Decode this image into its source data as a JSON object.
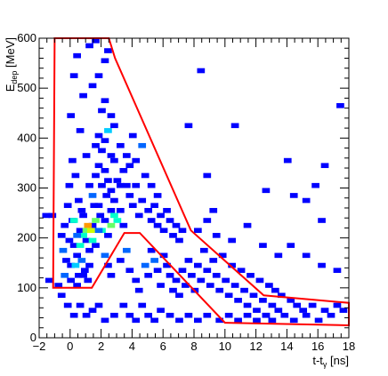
{
  "chart_data": {
    "type": "heatmap",
    "title": "",
    "xlabel": {
      "main": "t-t",
      "sub": "γ",
      "unit": " [ns]"
    },
    "ylabel": {
      "main": "E",
      "sub": "dep",
      "unit": " [MeV]"
    },
    "xlim": [
      -2,
      18
    ],
    "ylim": [
      0,
      600
    ],
    "xticks": [
      -2,
      0,
      2,
      4,
      6,
      8,
      10,
      12,
      14,
      16,
      18
    ],
    "yticks": [
      0,
      100,
      200,
      300,
      400,
      500,
      600
    ],
    "bin_width_x": 0.5,
    "bin_width_y": 10,
    "grid": false,
    "colormap": [
      "#0000ff",
      "#0066ff",
      "#00ccff",
      "#00ffcc",
      "#66ff66",
      "#ccff00",
      "#ff9900",
      "#ff0000"
    ],
    "cut_polygon": {
      "color": "#ff0000",
      "points": [
        [
          -1.0,
          600
        ],
        [
          -1.1,
          100
        ],
        [
          1.4,
          100
        ],
        [
          3.5,
          210
        ],
        [
          4.5,
          210
        ],
        [
          10.0,
          30
        ],
        [
          18.0,
          25
        ],
        [
          18.0,
          70
        ],
        [
          12.5,
          85
        ],
        [
          7.8,
          215
        ],
        [
          2.9,
          560
        ],
        [
          2.5,
          600
        ]
      ]
    },
    "bins": [
      [
        -0.8,
        200,
        1
      ],
      [
        -0.6,
        220,
        1
      ],
      [
        -0.5,
        150,
        1
      ],
      [
        -0.3,
        190,
        1
      ],
      [
        -0.2,
        140,
        1
      ],
      [
        -0.4,
        260,
        1
      ],
      [
        -0.7,
        170,
        2
      ],
      [
        -0.1,
        230,
        1
      ],
      [
        0.0,
        180,
        1
      ],
      [
        0.2,
        160,
        1
      ],
      [
        0.4,
        210,
        1
      ],
      [
        0.6,
        240,
        1
      ],
      [
        0.8,
        190,
        1
      ],
      [
        1.0,
        170,
        1
      ],
      [
        0.1,
        140,
        3
      ],
      [
        0.3,
        120,
        1
      ],
      [
        0.5,
        150,
        2
      ],
      [
        0.7,
        130,
        1
      ],
      [
        0.9,
        110,
        1
      ],
      [
        1.2,
        220,
        1
      ],
      [
        1.4,
        180,
        1
      ],
      [
        1.6,
        260,
        1
      ],
      [
        1.8,
        210,
        4
      ],
      [
        2.0,
        230,
        1
      ],
      [
        2.2,
        200,
        1
      ],
      [
        2.4,
        250,
        1
      ],
      [
        2.6,
        270,
        1
      ],
      [
        2.8,
        230,
        4
      ],
      [
        3.0,
        250,
        1
      ],
      [
        3.2,
        220,
        1
      ],
      [
        1.0,
        300,
        1
      ],
      [
        1.2,
        280,
        2
      ],
      [
        1.4,
        320,
        1
      ],
      [
        1.6,
        340,
        1
      ],
      [
        1.8,
        300,
        1
      ],
      [
        2.0,
        330,
        1
      ],
      [
        2.2,
        310,
        1
      ],
      [
        2.4,
        290,
        1
      ],
      [
        2.6,
        350,
        1
      ],
      [
        2.8,
        310,
        1
      ],
      [
        3.0,
        300,
        1
      ],
      [
        3.2,
        330,
        1
      ],
      [
        1.4,
        380,
        1
      ],
      [
        1.6,
        400,
        1
      ],
      [
        1.8,
        370,
        1
      ],
      [
        2.0,
        390,
        1
      ],
      [
        2.2,
        410,
        3
      ],
      [
        2.4,
        360,
        1
      ],
      [
        2.6,
        420,
        1
      ],
      [
        3.0,
        380,
        1
      ],
      [
        3.4,
        360,
        1
      ],
      [
        1.8,
        450,
        1
      ],
      [
        2.0,
        470,
        1
      ],
      [
        2.4,
        440,
        1
      ],
      [
        1.2,
        500,
        1
      ],
      [
        1.6,
        520,
        1
      ],
      [
        2.0,
        550,
        1
      ],
      [
        1.0,
        580,
        1
      ],
      [
        1.4,
        590,
        1
      ],
      [
        2.2,
        570,
        1
      ],
      [
        0.8,
        210,
        5
      ],
      [
        0.9,
        220,
        7
      ],
      [
        1.1,
        210,
        6
      ],
      [
        0.6,
        200,
        4
      ],
      [
        1.2,
        190,
        4
      ],
      [
        1.4,
        230,
        5
      ],
      [
        0.4,
        180,
        4
      ],
      [
        0.2,
        200,
        2
      ],
      [
        1.6,
        210,
        2
      ],
      [
        2.4,
        220,
        5
      ],
      [
        2.6,
        240,
        4
      ],
      [
        0.0,
        230,
        4
      ],
      [
        3.4,
        300,
        1
      ],
      [
        3.6,
        280,
        1
      ],
      [
        3.8,
        260,
        1
      ],
      [
        4.0,
        300,
        1
      ],
      [
        4.2,
        240,
        1
      ],
      [
        4.4,
        270,
        1
      ],
      [
        4.6,
        320,
        1
      ],
      [
        4.8,
        250,
        1
      ],
      [
        5.0,
        230,
        1
      ],
      [
        5.2,
        260,
        1
      ],
      [
        5.4,
        220,
        1
      ],
      [
        5.6,
        240,
        1
      ],
      [
        5.8,
        210,
        1
      ],
      [
        6.0,
        250,
        1
      ],
      [
        6.2,
        230,
        1
      ],
      [
        6.4,
        200,
        1
      ],
      [
        6.6,
        220,
        1
      ],
      [
        6.8,
        190,
        1
      ],
      [
        7.0,
        210,
        1
      ],
      [
        5.0,
        300,
        1
      ],
      [
        5.4,
        280,
        1
      ],
      [
        3.6,
        340,
        1
      ],
      [
        4.0,
        350,
        1
      ],
      [
        4.4,
        380,
        2
      ],
      [
        3.8,
        400,
        1
      ],
      [
        2.0,
        160,
        2
      ],
      [
        2.2,
        140,
        1
      ],
      [
        2.4,
        120,
        1
      ],
      [
        3.0,
        150,
        1
      ],
      [
        3.4,
        170,
        2
      ],
      [
        3.6,
        130,
        1
      ],
      [
        4.0,
        110,
        1
      ],
      [
        4.2,
        90,
        1
      ],
      [
        4.6,
        140,
        2
      ],
      [
        4.8,
        120,
        1
      ],
      [
        5.0,
        170,
        1
      ],
      [
        5.2,
        150,
        2
      ],
      [
        5.4,
        130,
        1
      ],
      [
        5.6,
        100,
        1
      ],
      [
        5.8,
        160,
        1
      ],
      [
        6.0,
        140,
        1
      ],
      [
        6.2,
        120,
        1
      ],
      [
        6.4,
        90,
        1
      ],
      [
        6.6,
        110,
        1
      ],
      [
        6.8,
        80,
        1
      ],
      [
        7.0,
        130,
        1
      ],
      [
        7.2,
        100,
        1
      ],
      [
        7.4,
        150,
        1
      ],
      [
        7.6,
        120,
        1
      ],
      [
        7.8,
        90,
        1
      ],
      [
        8.0,
        140,
        1
      ],
      [
        8.2,
        110,
        1
      ],
      [
        8.4,
        170,
        1
      ],
      [
        8.6,
        130,
        1
      ],
      [
        8.8,
        100,
        1
      ],
      [
        9.0,
        150,
        1
      ],
      [
        9.2,
        120,
        1
      ],
      [
        9.4,
        90,
        1
      ],
      [
        9.6,
        160,
        1
      ],
      [
        9.8,
        110,
        1
      ],
      [
        10.0,
        80,
        1
      ],
      [
        10.2,
        140,
        1
      ],
      [
        10.4,
        100,
        1
      ],
      [
        10.6,
        70,
        1
      ],
      [
        10.8,
        130,
        1
      ],
      [
        11.0,
        90,
        1
      ],
      [
        11.2,
        60,
        1
      ],
      [
        11.4,
        120,
        1
      ],
      [
        11.6,
        80,
        1
      ],
      [
        11.8,
        50,
        1
      ],
      [
        12.0,
        110,
        1
      ],
      [
        12.2,
        70,
        1
      ],
      [
        12.4,
        40,
        1
      ],
      [
        12.6,
        100,
        1
      ],
      [
        12.8,
        60,
        1
      ],
      [
        13.0,
        90,
        1
      ],
      [
        13.2,
        50,
        1
      ],
      [
        13.4,
        80,
        1
      ],
      [
        13.6,
        40,
        1
      ],
      [
        14.0,
        70,
        1
      ],
      [
        14.2,
        30,
        1
      ],
      [
        14.4,
        60,
        1
      ],
      [
        14.8,
        50,
        1
      ],
      [
        15.0,
        40,
        1
      ],
      [
        15.4,
        60,
        1
      ],
      [
        15.8,
        30,
        1
      ],
      [
        16.2,
        50,
        1
      ],
      [
        16.6,
        40,
        1
      ],
      [
        17.0,
        60,
        1
      ],
      [
        17.4,
        50,
        1
      ],
      [
        17.8,
        70,
        1
      ],
      [
        8.0,
        210,
        1
      ],
      [
        8.6,
        230,
        1
      ],
      [
        9.2,
        200,
        1
      ],
      [
        10.2,
        190,
        1
      ],
      [
        11.2,
        220,
        1
      ],
      [
        12.2,
        180,
        1
      ],
      [
        13.2,
        160,
        1
      ],
      [
        14.0,
        180,
        1
      ],
      [
        15.0,
        160,
        1
      ],
      [
        16.0,
        140,
        1
      ],
      [
        17.0,
        130,
        1
      ],
      [
        13.8,
        350,
        1
      ],
      [
        16.2,
        340,
        1
      ],
      [
        17.2,
        460,
        1
      ],
      [
        8.2,
        530,
        1
      ],
      [
        10.4,
        420,
        1
      ],
      [
        7.4,
        420,
        1
      ],
      [
        8.6,
        320,
        1
      ],
      [
        9.0,
        250,
        1
      ],
      [
        12.4,
        290,
        1
      ],
      [
        14.2,
        280,
        1
      ],
      [
        15.0,
        270,
        1
      ],
      [
        16.0,
        230,
        1
      ],
      [
        15.6,
        300,
        1
      ],
      [
        17.8,
        270,
        1
      ],
      [
        -0.8,
        80,
        1
      ],
      [
        -0.4,
        60,
        1
      ],
      [
        0.0,
        40,
        1
      ],
      [
        0.4,
        60,
        1
      ],
      [
        0.8,
        40,
        1
      ],
      [
        1.2,
        50,
        1
      ],
      [
        1.6,
        60,
        1
      ],
      [
        2.0,
        30,
        1
      ],
      [
        2.6,
        40,
        1
      ],
      [
        3.2,
        60,
        1
      ],
      [
        3.6,
        40,
        1
      ],
      [
        4.0,
        30,
        1
      ],
      [
        4.4,
        60,
        1
      ],
      [
        4.8,
        40,
        1
      ],
      [
        5.2,
        30,
        1
      ],
      [
        5.6,
        50,
        1
      ],
      [
        6.2,
        40,
        1
      ],
      [
        6.8,
        30,
        1
      ],
      [
        7.4,
        40,
        1
      ],
      [
        8.0,
        30,
        1
      ],
      [
        8.6,
        40,
        1
      ],
      [
        9.4,
        30,
        1
      ],
      [
        10.0,
        40,
        1
      ],
      [
        10.6,
        30,
        1
      ],
      [
        11.2,
        40,
        1
      ],
      [
        11.8,
        30,
        1
      ],
      [
        12.4,
        40,
        1
      ],
      [
        12.8,
        30,
        1
      ],
      [
        -1.0,
        100,
        1
      ],
      [
        -0.6,
        120,
        2
      ],
      [
        -0.2,
        110,
        1
      ],
      [
        0.2,
        100,
        1
      ],
      [
        0.6,
        120,
        1
      ],
      [
        1.0,
        140,
        1
      ],
      [
        0.3,
        270,
        1
      ],
      [
        0.5,
        250,
        1
      ],
      [
        1.3,
        260,
        1
      ],
      [
        1.7,
        240,
        1
      ],
      [
        2.1,
        280,
        1
      ],
      [
        -0.3,
        300,
        1
      ],
      [
        0.1,
        320,
        1
      ],
      [
        -1.4,
        240,
        1
      ],
      [
        -1.6,
        110,
        1
      ],
      [
        -1.8,
        240,
        1
      ],
      [
        0.0,
        520,
        1
      ],
      [
        0.2,
        560,
        1
      ],
      [
        0.6,
        480,
        1
      ],
      [
        -0.2,
        440,
        1
      ],
      [
        0.4,
        410,
        1
      ],
      [
        0.8,
        360,
        1
      ],
      [
        -0.1,
        350,
        1
      ]
    ]
  }
}
